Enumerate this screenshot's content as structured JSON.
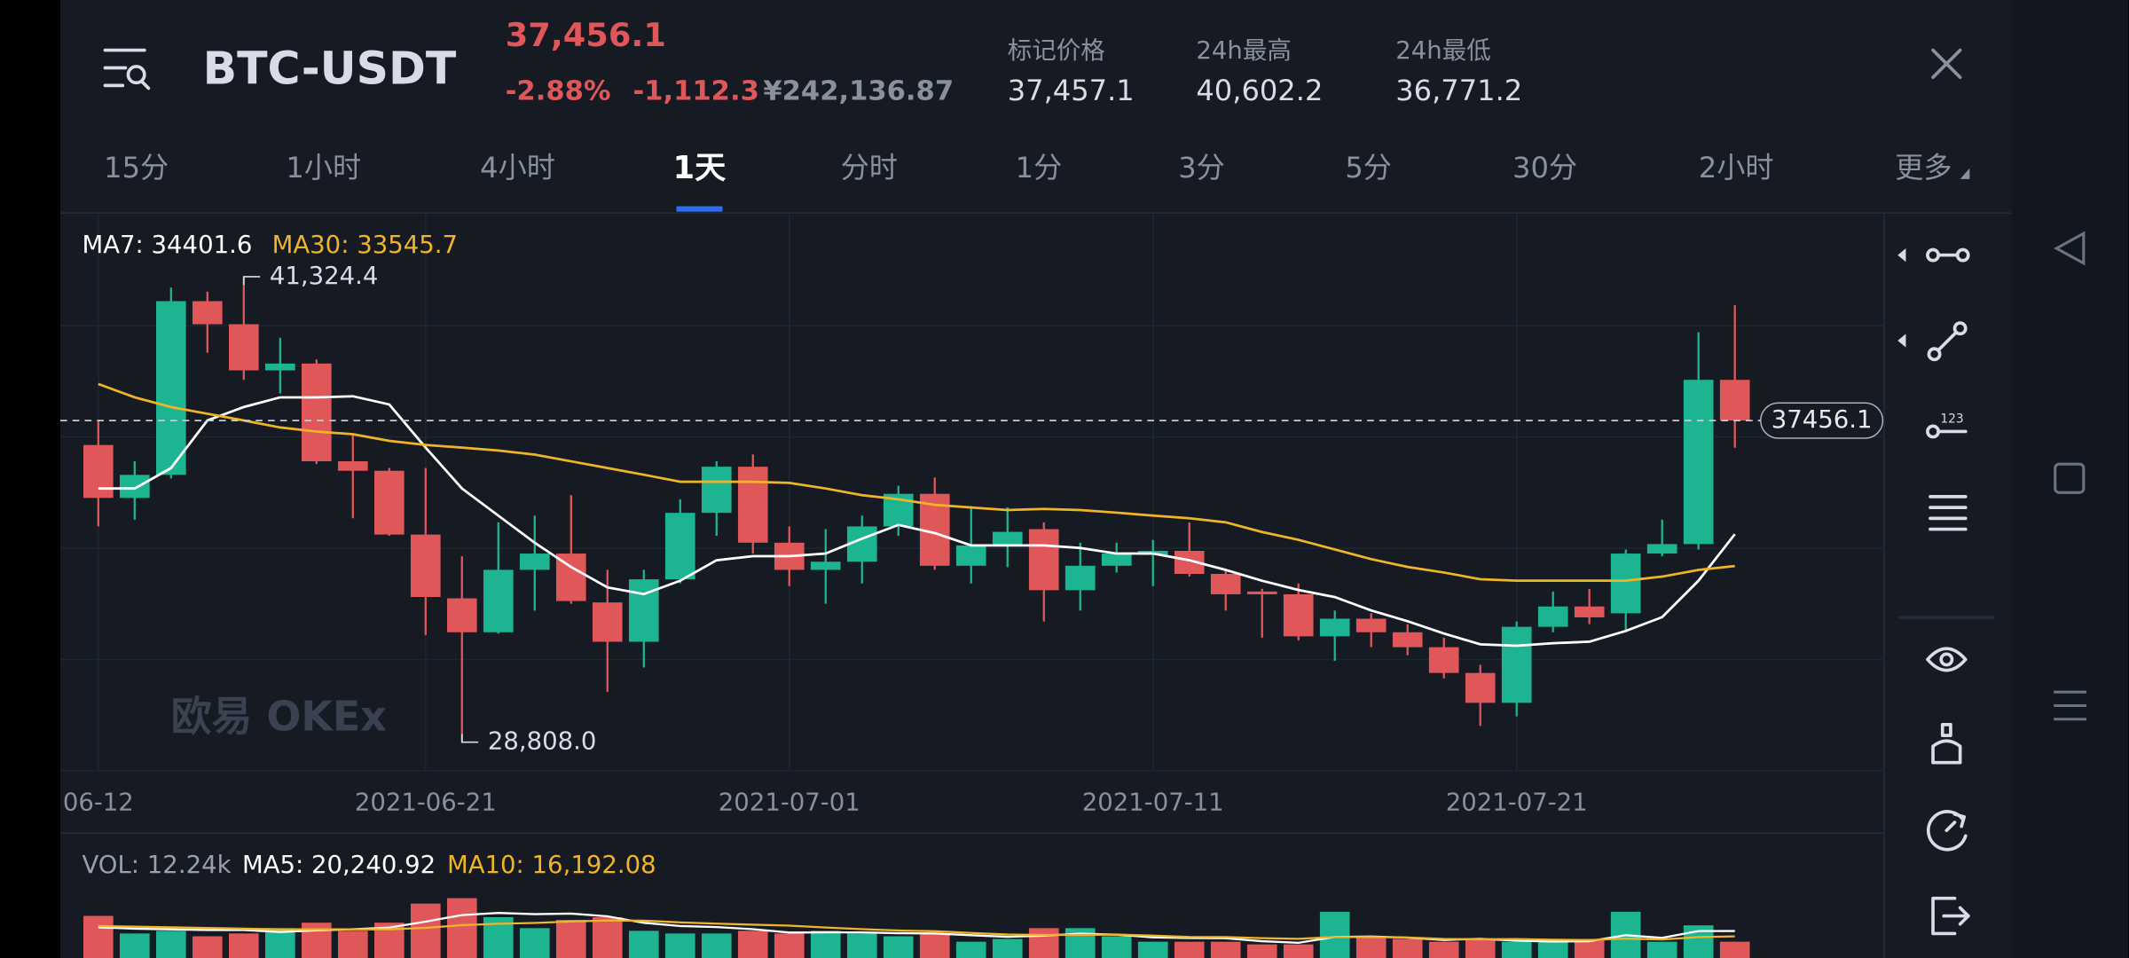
{
  "header": {
    "symbol": "BTC-USDT",
    "price": "37,456.1",
    "change_percent": "-2.88%",
    "change": "-1,112.3",
    "cny_price": "¥242,136.87",
    "stats": [
      {
        "label": "标记价格",
        "value": "37,457.1"
      },
      {
        "label": "24h最高",
        "value": "40,602.2"
      },
      {
        "label": "24h最低",
        "value": "36,771.2"
      }
    ]
  },
  "tabs": [
    "15分",
    "1小时",
    "4小时",
    "1天",
    "分时",
    "1分",
    "3分",
    "5分",
    "30分",
    "2小时",
    "更多"
  ],
  "active_tab": 3,
  "chart_data": {
    "type": "candlestick",
    "categories": [
      "06-12",
      null,
      null,
      null,
      null,
      null,
      null,
      null,
      null,
      "2021-06-21",
      null,
      null,
      null,
      null,
      null,
      null,
      null,
      null,
      null,
      "2021-07-01",
      null,
      null,
      null,
      null,
      null,
      null,
      null,
      null,
      null,
      "2021-07-11",
      null,
      null,
      null,
      null,
      null,
      null,
      null,
      null,
      null,
      "2021-07-21",
      null,
      null,
      null,
      null,
      null,
      null
    ],
    "open": [
      36799,
      35376,
      35996,
      40667,
      40047,
      38806,
      38989,
      36361,
      36106,
      34391,
      32676,
      31764,
      33442,
      33880,
      32566,
      31508,
      33187,
      34975,
      36215,
      34172,
      33442,
      33661,
      34610,
      35486,
      33552,
      34099,
      34537,
      32895,
      33552,
      33843,
      33953,
      33333,
      32859,
      32785,
      31654,
      32128,
      31764,
      31362,
      30669,
      29866,
      31910,
      32457,
      32274,
      33880,
      34135,
      38551
    ],
    "high": [
      37456,
      36361,
      41032,
      40923,
      41324.4,
      39682,
      39098,
      37091,
      36179,
      36179,
      33807,
      34719,
      34902,
      35449,
      33442,
      33442,
      35340,
      36361,
      36544,
      34610,
      34537,
      34902,
      35704,
      35923,
      35157,
      35121,
      34719,
      34172,
      34172,
      34245,
      34719,
      33442,
      32931,
      33077,
      32347,
      32274,
      31982,
      31618,
      30888,
      32055,
      32859,
      32931,
      33989,
      34792,
      39828,
      40558
    ],
    "low": [
      34610,
      34792,
      35900,
      39281,
      38551,
      38186,
      36288,
      34829,
      34354,
      31691,
      28808.0,
      31727,
      32347,
      32530,
      30158,
      30815,
      33077,
      34354,
      33880,
      33004,
      32530,
      33077,
      34354,
      33442,
      33077,
      33515,
      32055,
      32347,
      33369,
      33004,
      33260,
      32347,
      31618,
      31545,
      30997,
      31362,
      31143,
      30523,
      29246,
      29501,
      31764,
      31982,
      31800,
      33807,
      33989,
      36726
    ],
    "close": [
      35376,
      35996,
      40667,
      40047,
      38806,
      38989,
      36361,
      36106,
      34391,
      32712,
      31764,
      33442,
      33880,
      32603,
      31508,
      33187,
      34975,
      36215,
      34172,
      33442,
      33661,
      34610,
      35486,
      33552,
      34099,
      34464,
      32895,
      33552,
      33880,
      33953,
      33333,
      32785,
      32785,
      31654,
      32128,
      31764,
      31362,
      30669,
      29866,
      31910,
      32457,
      32165,
      33880,
      34135,
      38551,
      37456.1
    ],
    "up_color": "#1db491",
    "down_color": "#e0575a",
    "ylim": [
      28040,
      43000
    ],
    "max_label": "41,324.4",
    "min_label": "28,808.0",
    "watermark": "欧易 OKEx",
    "series": [
      {
        "name": "MA7: 34401.6",
        "color": "#ffffff",
        "values": [
          35630,
          35630,
          36180,
          37460,
          37820,
          38080,
          38080,
          38110,
          37890,
          36730,
          35630,
          34900,
          34170,
          33520,
          32970,
          32790,
          33150,
          33700,
          33810,
          33810,
          33880,
          34280,
          34650,
          34430,
          34100,
          34100,
          34100,
          34030,
          33880,
          33880,
          33700,
          33440,
          33150,
          32900,
          32710,
          32350,
          32060,
          31730,
          31440,
          31400,
          31470,
          31510,
          31800,
          32170,
          33150,
          34401.6
        ]
      },
      {
        "name": "MA30: 33545.7",
        "color": "#f0b429",
        "values": [
          38440,
          38080,
          37820,
          37640,
          37460,
          37270,
          37160,
          37090,
          36910,
          36800,
          36730,
          36650,
          36540,
          36360,
          36180,
          36000,
          35810,
          35810,
          35810,
          35780,
          35630,
          35450,
          35340,
          35190,
          35120,
          35050,
          35080,
          35050,
          34980,
          34900,
          34830,
          34720,
          34460,
          34250,
          33990,
          33730,
          33520,
          33370,
          33190,
          33150,
          33150,
          33150,
          33150,
          33260,
          33440,
          33545.7
        ]
      }
    ],
    "volume": {
      "label": "VOL: 12.24k",
      "ylim": [
        0,
        57000
      ],
      "values": [
        31600,
        18400,
        20400,
        16300,
        18400,
        22400,
        26500,
        20400,
        26500,
        40800,
        44900,
        30600,
        22400,
        28600,
        30600,
        20400,
        18400,
        18400,
        20400,
        18400,
        20400,
        18400,
        16300,
        18400,
        12200,
        14300,
        22400,
        22400,
        16300,
        12200,
        12200,
        12200,
        10200,
        10200,
        34700,
        16300,
        14300,
        12200,
        14300,
        12200,
        12200,
        14300,
        34700,
        12200,
        24500,
        12240
      ],
      "series": [
        {
          "name": "MA5: 20,240.92",
          "color": "#ffffff",
          "values": [
            23000,
            22000,
            21500,
            21000,
            21000,
            19500,
            20700,
            21600,
            22800,
            27300,
            32200,
            33800,
            32900,
            33300,
            31300,
            26400,
            24000,
            23200,
            21600,
            19100,
            19200,
            19200,
            18600,
            18400,
            17100,
            15900,
            16700,
            18300,
            17500,
            15500,
            15000,
            14800,
            12600,
            11400,
            15800,
            16100,
            15300,
            13500,
            14400,
            13000,
            12300,
            12600,
            17100,
            15100,
            20200,
            20240.92
          ]
        },
        {
          "name": "MA10: 16,192.08",
          "color": "#f0b429",
          "values": [
            24000,
            23500,
            23000,
            22500,
            22000,
            21500,
            21500,
            21500,
            21500,
            22600,
            24600,
            25700,
            26300,
            27400,
            28100,
            28000,
            26700,
            25800,
            25000,
            24300,
            22900,
            21600,
            20600,
            20100,
            18800,
            17600,
            17300,
            17300,
            17600,
            16800,
            15800,
            15700,
            14900,
            14400,
            15700,
            15700,
            15400,
            14300,
            14000,
            14200,
            13700,
            13500,
            14600,
            13900,
            15700,
            16192.08
          ]
        }
      ]
    }
  }
}
